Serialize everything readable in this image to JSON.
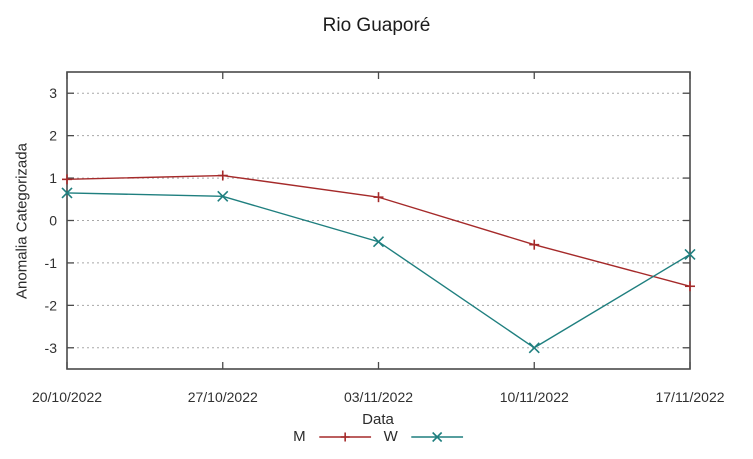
{
  "chart_data": {
    "type": "line",
    "title": "Rio Guaporé",
    "xlabel": "Data",
    "ylabel": "Anomalia Categorizada",
    "categories": [
      "20/10/2022",
      "27/10/2022",
      "03/11/2022",
      "10/11/2022",
      "17/11/2022"
    ],
    "yticks": [
      -3,
      -2,
      -1,
      0,
      1,
      2,
      3
    ],
    "ylim": [
      -3.5,
      3.5
    ],
    "grid": true,
    "legend_position": "bottom",
    "series": [
      {
        "name": "M",
        "marker": "plus",
        "color": "#a52a2a",
        "values": [
          0.97,
          1.06,
          0.55,
          -0.57,
          -1.55
        ]
      },
      {
        "name": "W",
        "marker": "cross",
        "color": "#1f7f7f",
        "values": [
          0.65,
          0.57,
          -0.5,
          -3.0,
          -0.8
        ]
      }
    ],
    "colors": {
      "border": "#4a4a4a",
      "grid": "#a8a8a8",
      "tick_text": "#303030"
    }
  }
}
